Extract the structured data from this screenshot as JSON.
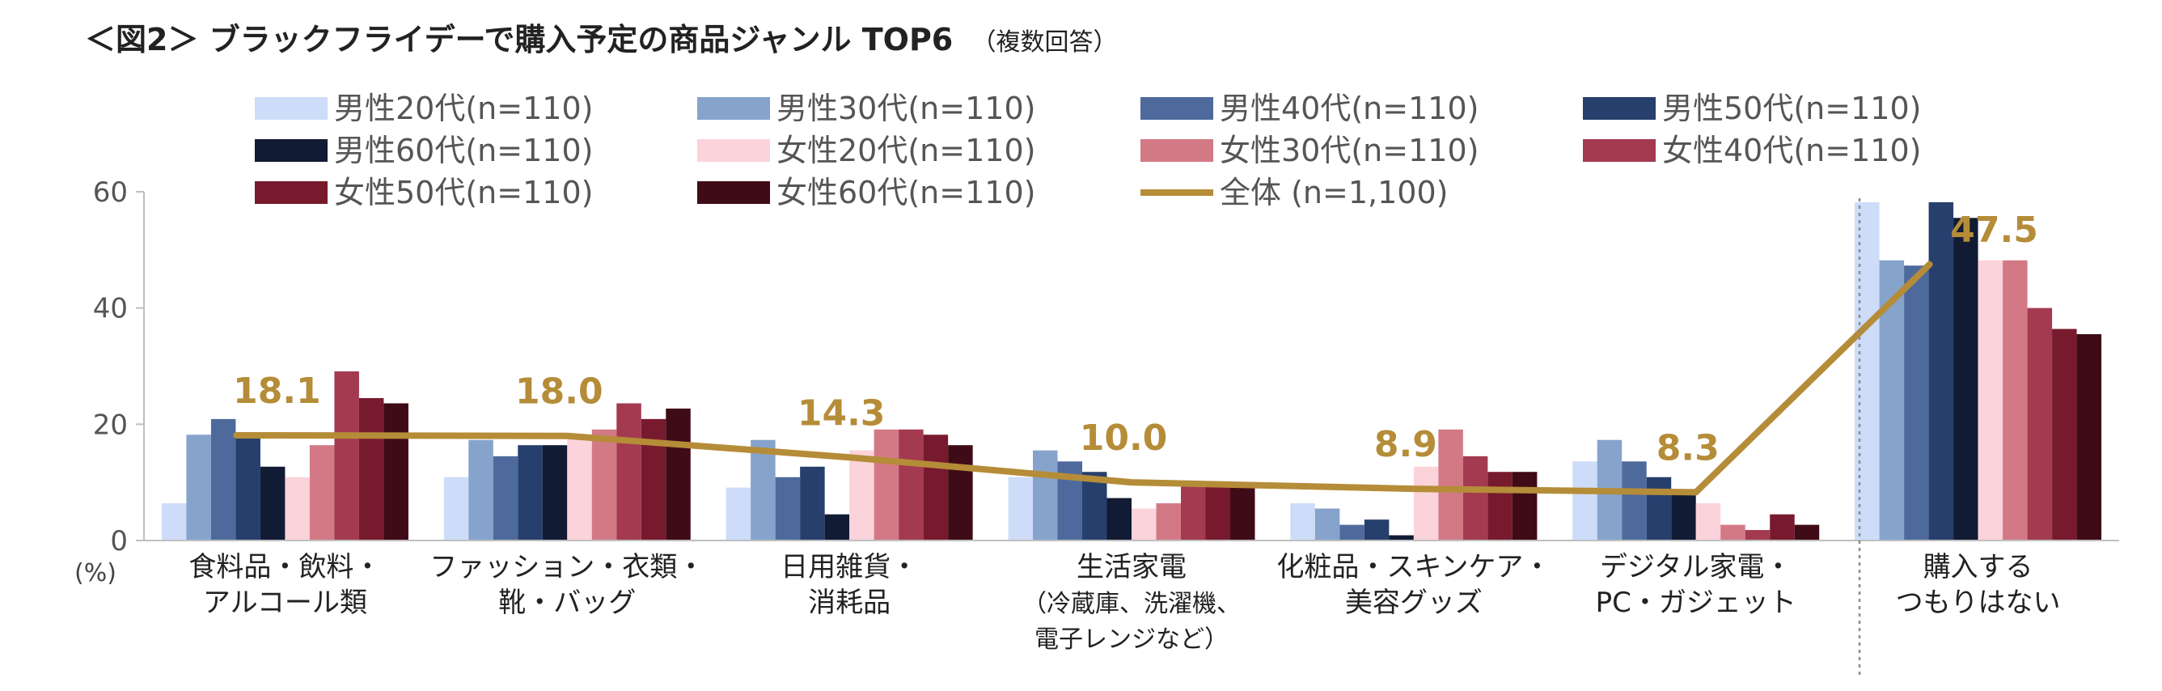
{
  "chart_data": {
    "type": "bar",
    "title": "＜図2＞ ブラックフライデーで購入予定の商品ジャンル TOP6",
    "subtitle": "（複数回答）",
    "y_unit": "(%)",
    "ylim": [
      0,
      60
    ],
    "yticks": [
      0,
      20,
      40,
      60
    ],
    "grid": false,
    "legend_position": "top",
    "categories": [
      [
        "食料品・飲料・",
        "アルコール類"
      ],
      [
        "ファッション・衣類・",
        "靴・バッグ"
      ],
      [
        "日用雑貨・",
        "消耗品"
      ],
      [
        "生活家電",
        "（冷蔵庫、洗濯機、",
        "電子レンジなど）"
      ],
      [
        "化粧品・スキンケア・",
        "美容グッズ"
      ],
      [
        "デジタル家電・",
        "PC・ガジェット"
      ],
      [
        "購入する",
        "つもりはない"
      ]
    ],
    "series": [
      {
        "name": "男性20代(n=110)",
        "color": "#cddcf8",
        "values": [
          6.4,
          10.9,
          9.1,
          10.9,
          6.4,
          13.6,
          58.2
        ]
      },
      {
        "name": "男性30代(n=110)",
        "color": "#86a3cc",
        "values": [
          18.2,
          17.3,
          17.3,
          15.5,
          5.5,
          17.3,
          48.2
        ]
      },
      {
        "name": "男性40代(n=110)",
        "color": "#4e6a9c",
        "values": [
          20.9,
          14.5,
          10.9,
          13.6,
          2.7,
          13.6,
          47.3
        ]
      },
      {
        "name": "男性50代(n=110)",
        "color": "#273f6c",
        "values": [
          18.2,
          16.4,
          12.7,
          11.8,
          3.6,
          10.9,
          58.2
        ]
      },
      {
        "name": "男性60代(n=110)",
        "color": "#111b33",
        "values": [
          12.7,
          16.4,
          4.5,
          7.3,
          0.9,
          8.2,
          55.5
        ]
      },
      {
        "name": "女性20代(n=110)",
        "color": "#fbd3da",
        "values": [
          10.9,
          18.2,
          15.5,
          5.5,
          12.7,
          6.4,
          48.2
        ]
      },
      {
        "name": "女性30代(n=110)",
        "color": "#d37985",
        "values": [
          16.4,
          19.1,
          19.1,
          6.4,
          19.1,
          2.7,
          48.2
        ]
      },
      {
        "name": "女性40代(n=110)",
        "color": "#a33a50",
        "values": [
          29.1,
          23.6,
          19.1,
          10.0,
          14.5,
          1.8,
          40.0
        ]
      },
      {
        "name": "女性50代(n=110)",
        "color": "#781a2e",
        "values": [
          24.5,
          20.9,
          18.2,
          10.0,
          11.8,
          4.5,
          36.4
        ]
      },
      {
        "name": "女性60代(n=110)",
        "color": "#3e0b16",
        "values": [
          23.6,
          22.7,
          16.4,
          10.0,
          11.8,
          2.7,
          35.5
        ]
      }
    ],
    "total_series": {
      "name": "全体 (n=1,100)",
      "type": "line",
      "color": "#b58c38",
      "values": [
        18.1,
        18.0,
        14.3,
        10.0,
        8.9,
        8.3,
        47.5
      ],
      "labels": [
        "18.1",
        "18.0",
        "14.3",
        "10.0",
        "8.9",
        "8.3",
        "47.5"
      ]
    }
  }
}
